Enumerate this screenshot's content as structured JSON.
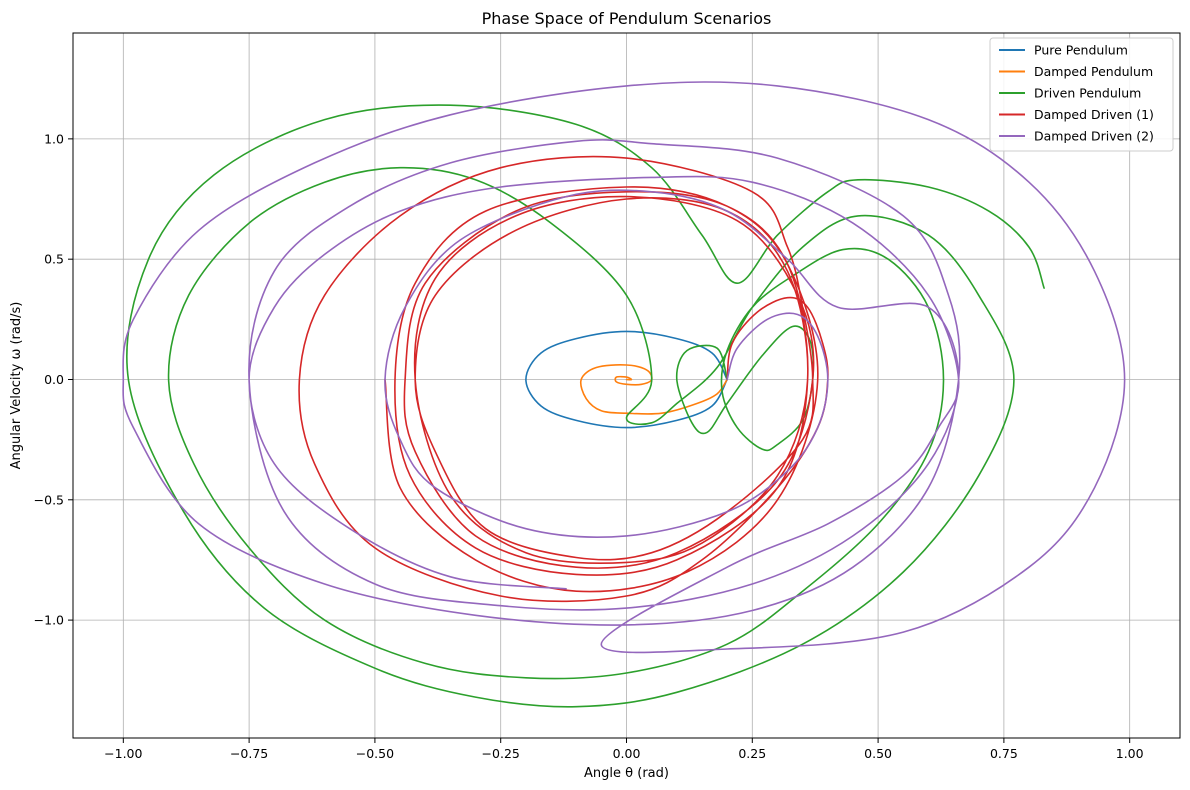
{
  "chart_data": {
    "type": "line",
    "title": "Phase Space of Pendulum Scenarios",
    "xlabel": "Angle θ (rad)",
    "ylabel": "Angular Velocity ω (rad/s)",
    "xlim": [
      -1.1,
      1.1
    ],
    "ylim": [
      -1.49,
      1.44
    ],
    "xticks": [
      -1.0,
      -0.75,
      -0.5,
      -0.25,
      0.0,
      0.25,
      0.5,
      0.75,
      1.0
    ],
    "xtick_labels": [
      "−1.00",
      "−0.75",
      "−0.50",
      "−0.25",
      "0.00",
      "0.25",
      "0.50",
      "0.75",
      "1.00"
    ],
    "yticks": [
      -1.0,
      -0.5,
      0.0,
      0.5,
      1.0
    ],
    "ytick_labels": [
      "−1.0",
      "−0.5",
      "0.0",
      "0.5",
      "1.0"
    ],
    "grid": true,
    "legend_position": "top-right",
    "series": [
      {
        "name": "Pure Pendulum",
        "color": "#1f77b4",
        "points": [
          [
            0.2,
            0.0
          ],
          [
            0.17,
            0.11
          ],
          [
            0.1,
            0.17
          ],
          [
            0.0,
            0.2
          ],
          [
            -0.1,
            0.17
          ],
          [
            -0.17,
            0.11
          ],
          [
            -0.2,
            0.0
          ],
          [
            -0.17,
            -0.11
          ],
          [
            -0.1,
            -0.17
          ],
          [
            0.0,
            -0.2
          ],
          [
            0.1,
            -0.17
          ],
          [
            0.17,
            -0.11
          ],
          [
            0.2,
            0.0
          ]
        ]
      },
      {
        "name": "Damped Pendulum",
        "color": "#ff7f0e",
        "points": [
          [
            0.2,
            0.0
          ],
          [
            0.18,
            -0.06
          ],
          [
            0.14,
            -0.1
          ],
          [
            0.07,
            -0.14
          ],
          [
            0.0,
            -0.14
          ],
          [
            -0.05,
            -0.13
          ],
          [
            -0.08,
            -0.08
          ],
          [
            -0.09,
            0.0
          ],
          [
            -0.06,
            0.05
          ],
          [
            0.0,
            0.06
          ],
          [
            0.04,
            0.04
          ],
          [
            0.05,
            0.0
          ],
          [
            0.03,
            -0.02
          ],
          [
            0.0,
            -0.02
          ],
          [
            -0.02,
            -0.01
          ],
          [
            -0.02,
            0.01
          ],
          [
            0.0,
            0.01
          ],
          [
            0.01,
            0.0
          ],
          [
            0.0,
            0.0
          ]
        ]
      },
      {
        "name": "Driven Pendulum",
        "color": "#2ca02c",
        "points": [
          [
            0.2,
            0.0
          ],
          [
            0.18,
            0.13
          ],
          [
            0.12,
            0.12
          ],
          [
            0.1,
            0.0
          ],
          [
            0.13,
            -0.18
          ],
          [
            0.16,
            -0.22
          ],
          [
            0.2,
            -0.1
          ],
          [
            0.27,
            0.1
          ],
          [
            0.33,
            0.22
          ],
          [
            0.365,
            0.16
          ],
          [
            0.37,
            0.0
          ],
          [
            0.35,
            -0.17
          ],
          [
            0.3,
            -0.27
          ],
          [
            0.27,
            -0.29
          ],
          [
            0.22,
            -0.2
          ],
          [
            0.19,
            -0.05
          ],
          [
            0.2,
            0.12
          ],
          [
            0.25,
            0.3
          ],
          [
            0.33,
            0.43
          ],
          [
            0.43,
            0.54
          ],
          [
            0.52,
            0.5
          ],
          [
            0.6,
            0.3
          ],
          [
            0.63,
            0.0
          ],
          [
            0.6,
            -0.3
          ],
          [
            0.5,
            -0.6
          ],
          [
            0.35,
            -0.88
          ],
          [
            0.2,
            -1.1
          ],
          [
            0.0,
            -1.22
          ],
          [
            -0.2,
            -1.24
          ],
          [
            -0.4,
            -1.18
          ],
          [
            -0.6,
            -1.0
          ],
          [
            -0.75,
            -0.7
          ],
          [
            -0.86,
            -0.35
          ],
          [
            -0.91,
            0.0
          ],
          [
            -0.87,
            0.35
          ],
          [
            -0.75,
            0.65
          ],
          [
            -0.6,
            0.82
          ],
          [
            -0.45,
            0.88
          ],
          [
            -0.3,
            0.83
          ],
          [
            -0.15,
            0.65
          ],
          [
            0.0,
            0.35
          ],
          [
            0.05,
            0.0
          ],
          [
            0.0,
            -0.16
          ],
          [
            0.05,
            -0.18
          ],
          [
            0.1,
            -0.1
          ],
          [
            0.18,
            0.05
          ],
          [
            0.25,
            0.3
          ],
          [
            0.35,
            0.55
          ],
          [
            0.46,
            0.68
          ],
          [
            0.6,
            0.6
          ],
          [
            0.7,
            0.35
          ],
          [
            0.77,
            0.0
          ],
          [
            0.7,
            -0.4
          ],
          [
            0.55,
            -0.8
          ],
          [
            0.35,
            -1.1
          ],
          [
            0.1,
            -1.3
          ],
          [
            -0.1,
            -1.36
          ],
          [
            -0.3,
            -1.32
          ],
          [
            -0.5,
            -1.2
          ],
          [
            -0.72,
            -0.95
          ],
          [
            -0.88,
            -0.55
          ],
          [
            -0.99,
            0.0
          ],
          [
            -0.95,
            0.5
          ],
          [
            -0.82,
            0.85
          ],
          [
            -0.6,
            1.08
          ],
          [
            -0.35,
            1.14
          ],
          [
            -0.1,
            1.06
          ],
          [
            0.05,
            0.88
          ],
          [
            0.15,
            0.6
          ],
          [
            0.22,
            0.4
          ],
          [
            0.3,
            0.6
          ],
          [
            0.4,
            0.78
          ],
          [
            0.46,
            0.83
          ],
          [
            0.6,
            0.8
          ],
          [
            0.72,
            0.7
          ],
          [
            0.8,
            0.55
          ],
          [
            0.83,
            0.38
          ]
        ]
      },
      {
        "name": "Damped Driven (1)",
        "color": "#d62728",
        "points": [
          [
            0.2,
            0.0
          ],
          [
            0.21,
            0.15
          ],
          [
            0.26,
            0.28
          ],
          [
            0.32,
            0.34
          ],
          [
            0.36,
            0.3
          ],
          [
            0.39,
            0.15
          ],
          [
            0.4,
            0.0
          ],
          [
            0.38,
            -0.2
          ],
          [
            0.3,
            -0.45
          ],
          [
            0.15,
            -0.75
          ],
          [
            0.0,
            -0.9
          ],
          [
            -0.25,
            -0.9
          ],
          [
            -0.5,
            -0.7
          ],
          [
            -0.62,
            -0.35
          ],
          [
            -0.65,
            0.0
          ],
          [
            -0.6,
            0.35
          ],
          [
            -0.45,
            0.68
          ],
          [
            -0.25,
            0.88
          ],
          [
            0.0,
            0.92
          ],
          [
            0.25,
            0.78
          ],
          [
            0.32,
            0.55
          ],
          [
            0.35,
            0.3
          ],
          [
            0.37,
            0.0
          ],
          [
            0.35,
            -0.25
          ],
          [
            0.2,
            -0.55
          ],
          [
            0.05,
            -0.72
          ],
          [
            -0.1,
            -0.74
          ],
          [
            -0.28,
            -0.62
          ],
          [
            -0.38,
            -0.3
          ],
          [
            -0.42,
            0.0
          ],
          [
            -0.38,
            0.35
          ],
          [
            -0.22,
            0.62
          ],
          [
            0.0,
            0.75
          ],
          [
            0.2,
            0.7
          ],
          [
            0.32,
            0.45
          ],
          [
            0.36,
            0.0
          ],
          [
            0.3,
            -0.4
          ],
          [
            0.15,
            -0.68
          ],
          [
            0.0,
            -0.76
          ],
          [
            -0.2,
            -0.72
          ],
          [
            -0.35,
            -0.48
          ],
          [
            -0.42,
            0.0
          ],
          [
            -0.38,
            0.42
          ],
          [
            -0.22,
            0.68
          ],
          [
            0.0,
            0.76
          ],
          [
            0.22,
            0.66
          ],
          [
            0.34,
            0.35
          ],
          [
            0.37,
            0.0
          ],
          [
            0.3,
            -0.42
          ],
          [
            0.1,
            -0.72
          ],
          [
            -0.1,
            -0.78
          ],
          [
            -0.3,
            -0.65
          ],
          [
            -0.42,
            -0.3
          ],
          [
            -0.44,
            0.0
          ],
          [
            -0.4,
            0.4
          ],
          [
            -0.22,
            0.7
          ],
          [
            0.0,
            0.78
          ],
          [
            0.2,
            0.72
          ],
          [
            0.32,
            0.48
          ],
          [
            0.36,
            0.0
          ],
          [
            0.3,
            -0.45
          ],
          [
            0.1,
            -0.75
          ],
          [
            -0.1,
            -0.81
          ],
          [
            -0.3,
            -0.7
          ],
          [
            -0.43,
            -0.4
          ],
          [
            -0.46,
            0.0
          ],
          [
            -0.42,
            0.4
          ],
          [
            -0.28,
            0.7
          ],
          [
            0.0,
            0.8
          ],
          [
            0.2,
            0.72
          ],
          [
            0.32,
            0.48
          ],
          [
            0.38,
            0.0
          ],
          [
            0.3,
            -0.5
          ],
          [
            0.12,
            -0.8
          ],
          [
            -0.1,
            -0.88
          ],
          [
            -0.3,
            -0.75
          ],
          [
            -0.45,
            -0.45
          ],
          [
            -0.48,
            0.0
          ]
        ]
      },
      {
        "name": "Damped Driven (2)",
        "color": "#9467bd",
        "points": [
          [
            0.2,
            0.0
          ],
          [
            0.22,
            0.13
          ],
          [
            0.28,
            0.25
          ],
          [
            0.34,
            0.27
          ],
          [
            0.38,
            0.18
          ],
          [
            0.4,
            0.0
          ],
          [
            0.38,
            -0.2
          ],
          [
            0.32,
            -0.38
          ],
          [
            0.2,
            -0.55
          ],
          [
            0.0,
            -0.65
          ],
          [
            -0.2,
            -0.62
          ],
          [
            -0.38,
            -0.45
          ],
          [
            -0.45,
            -0.25
          ],
          [
            -0.48,
            0.0
          ],
          [
            -0.44,
            0.3
          ],
          [
            -0.33,
            0.58
          ],
          [
            -0.12,
            0.76
          ],
          [
            0.05,
            0.78
          ],
          [
            0.2,
            0.7
          ],
          [
            0.32,
            0.5
          ],
          [
            0.42,
            0.3
          ],
          [
            0.6,
            0.3
          ],
          [
            0.66,
            0.0
          ],
          [
            0.6,
            -0.35
          ],
          [
            0.45,
            -0.65
          ],
          [
            0.25,
            -0.85
          ],
          [
            0.0,
            -0.95
          ],
          [
            -0.25,
            -0.94
          ],
          [
            -0.5,
            -0.85
          ],
          [
            -0.68,
            -0.55
          ],
          [
            -0.75,
            0.0
          ],
          [
            -0.7,
            0.45
          ],
          [
            -0.55,
            0.72
          ],
          [
            -0.35,
            0.9
          ],
          [
            -0.1,
            0.99
          ],
          [
            0.05,
            0.98
          ],
          [
            0.3,
            0.92
          ],
          [
            0.55,
            0.68
          ],
          [
            0.64,
            0.35
          ],
          [
            0.66,
            0.0
          ],
          [
            0.6,
            -0.45
          ],
          [
            0.45,
            -0.78
          ],
          [
            0.25,
            -0.96
          ],
          [
            0.0,
            -1.02
          ],
          [
            -0.3,
            -0.98
          ],
          [
            -0.6,
            -0.85
          ],
          [
            -0.85,
            -0.6
          ],
          [
            -0.98,
            -0.2
          ],
          [
            -1.0,
            0.0
          ],
          [
            -0.98,
            0.25
          ],
          [
            -0.85,
            0.62
          ],
          [
            -0.62,
            0.9
          ],
          [
            -0.35,
            1.1
          ],
          [
            0.0,
            1.22
          ],
          [
            0.3,
            1.22
          ],
          [
            0.6,
            1.08
          ],
          [
            0.8,
            0.82
          ],
          [
            0.93,
            0.45
          ],
          [
            0.99,
            0.0
          ],
          [
            0.93,
            -0.45
          ],
          [
            0.8,
            -0.78
          ],
          [
            0.55,
            -1.05
          ],
          [
            0.2,
            -1.12
          ],
          [
            -0.05,
            -1.1
          ],
          [
            0.2,
            -0.78
          ],
          [
            0.4,
            -0.6
          ],
          [
            0.55,
            -0.4
          ],
          [
            0.62,
            -0.2
          ],
          [
            0.66,
            0.0
          ],
          [
            0.6,
            0.35
          ],
          [
            0.45,
            0.65
          ],
          [
            0.25,
            0.82
          ],
          [
            0.05,
            0.84
          ],
          [
            -0.25,
            0.8
          ],
          [
            -0.45,
            0.7
          ],
          [
            -0.6,
            0.52
          ],
          [
            -0.7,
            0.3
          ],
          [
            -0.75,
            0.0
          ],
          [
            -0.7,
            -0.35
          ],
          [
            -0.55,
            -0.62
          ],
          [
            -0.35,
            -0.82
          ],
          [
            -0.12,
            -0.87
          ]
        ]
      }
    ]
  }
}
